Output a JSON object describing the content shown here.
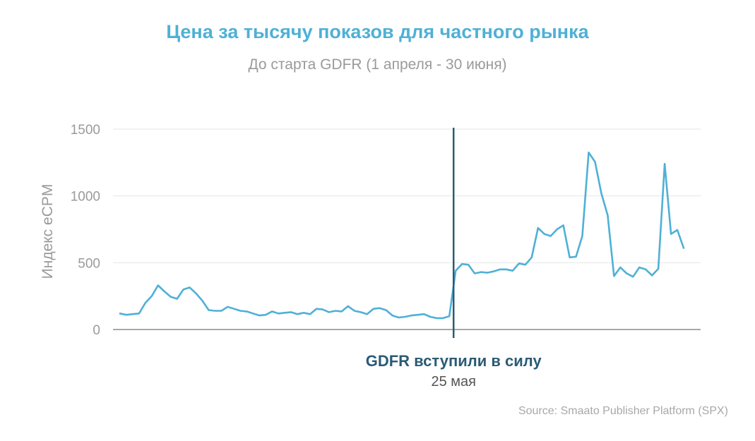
{
  "chart_data": {
    "type": "line",
    "title": "Цена за тысячу показов для частного рынка",
    "subtitle": "До старта GDFR (1 апреля - 30 июня)",
    "ylabel": "Индекс eCPM",
    "xlabel": "",
    "ylim": [
      0,
      1500
    ],
    "yticks": [
      "0",
      "500",
      "1000",
      "1500"
    ],
    "grid": true,
    "series": [
      {
        "color": "#4fb0d6",
        "values": [
          120,
          110,
          115,
          120,
          200,
          250,
          330,
          285,
          245,
          230,
          300,
          315,
          270,
          215,
          145,
          140,
          140,
          170,
          155,
          140,
          135,
          120,
          105,
          110,
          135,
          120,
          125,
          130,
          115,
          125,
          115,
          155,
          150,
          130,
          140,
          135,
          175,
          140,
          130,
          115,
          155,
          160,
          145,
          105,
          90,
          95,
          105,
          110,
          115,
          95,
          85,
          85,
          100,
          440,
          490,
          485,
          420,
          430,
          425,
          435,
          450,
          450,
          440,
          495,
          485,
          540,
          760,
          715,
          700,
          750,
          780,
          540,
          545,
          700,
          1325,
          1255,
          1020,
          855,
          400,
          465,
          420,
          395,
          465,
          450,
          405,
          455,
          1240,
          715,
          745,
          610
        ]
      }
    ],
    "event": {
      "index": 53,
      "label": "GDFR вступили в силу",
      "date": "25 мая",
      "color": "#2b5b75"
    },
    "source": "Source: Smaato Publisher Platform (SPX)"
  }
}
